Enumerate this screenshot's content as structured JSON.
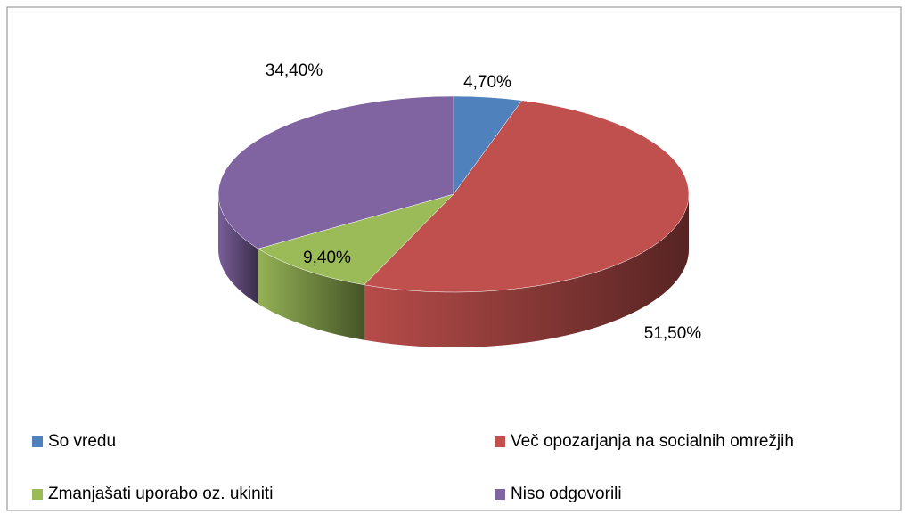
{
  "chart_data": {
    "type": "pie3d",
    "categories": [
      "So vredu",
      "Več opozarjanja na socialnih omrežjih",
      "Zmanjašati uporabo oz. ukiniti",
      "Niso odgovorili"
    ],
    "values": [
      4.7,
      51.5,
      9.4,
      34.4
    ],
    "value_labels": [
      "4,70%",
      "51,50%",
      "9,40%",
      "34,40%"
    ],
    "colors": [
      "#4f81bd",
      "#c0504d",
      "#9bbb59",
      "#8064a2"
    ],
    "legend": "bottom"
  }
}
